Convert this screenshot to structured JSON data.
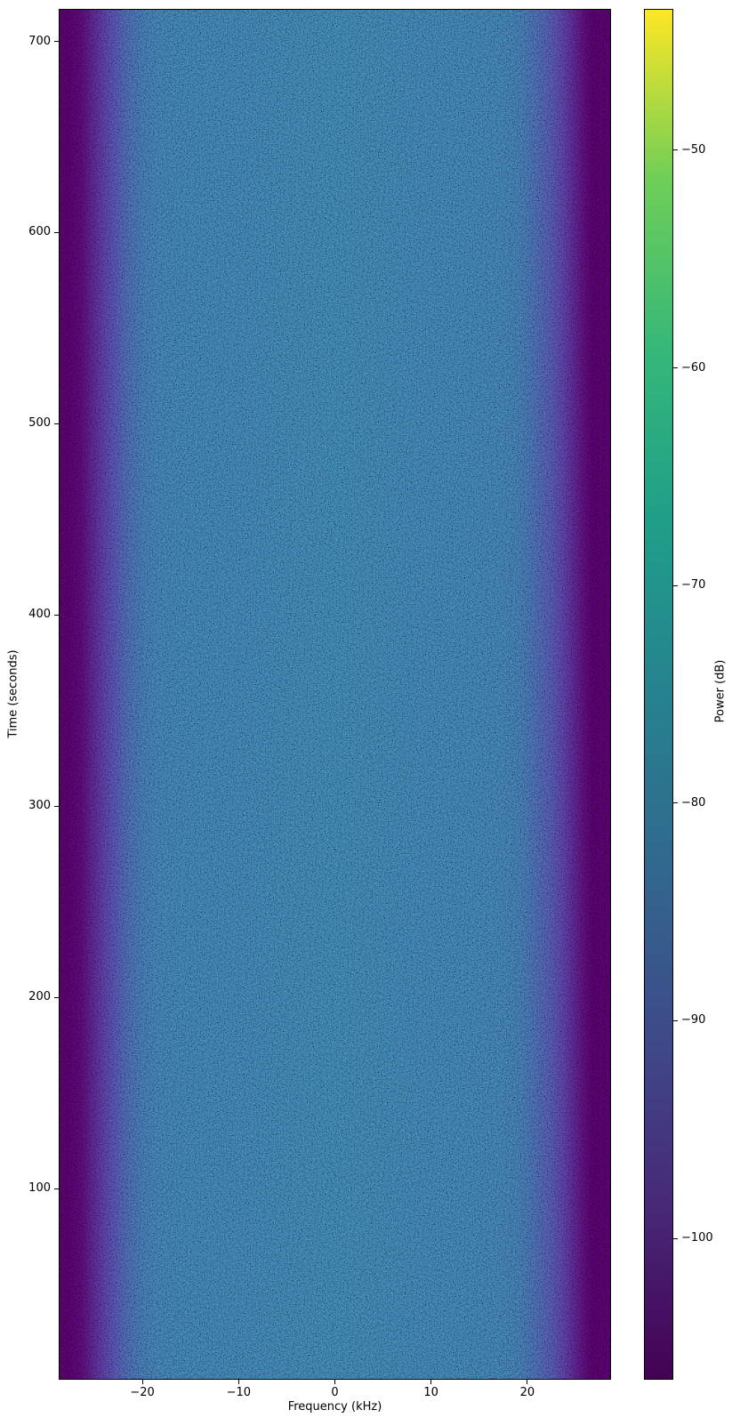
{
  "chart_data": {
    "type": "heatmap",
    "subtype": "spectrogram-waterfall",
    "xlabel": "Frequency (kHz)",
    "ylabel": "Time (seconds)",
    "colorbar_label": "Power (dB)",
    "colormap": "viridis",
    "grid": false,
    "x_range_khz": [
      -28.7,
      28.7
    ],
    "y_range_s": [
      0,
      717
    ],
    "color_range_db": [
      -106.5,
      -43.5
    ],
    "x_ticks": {
      "values": [
        -20,
        -10,
        0,
        10,
        20
      ],
      "labels": [
        "−20",
        "−10",
        "0",
        "10",
        "20"
      ]
    },
    "y_ticks": {
      "values": [
        100,
        200,
        300,
        400,
        500,
        600,
        700
      ],
      "labels": [
        "100",
        "200",
        "300",
        "400",
        "500",
        "600",
        "700"
      ]
    },
    "colorbar_ticks": {
      "values": [
        -50,
        -60,
        -70,
        -80,
        -90,
        -100
      ],
      "labels": [
        "−50",
        "−60",
        "−70",
        "−80",
        "−90",
        "−100"
      ]
    },
    "content_summary": "Flat broadband noise floor of about −85 dB occupying roughly ±24 kHz of the passband, uniform over the full 0–717 s capture, rolling off through purple (≈−95 dB) to a dark ≈−105 dB floor at the band edges beyond ±27 kHz; fine speckle noise texture throughout; no signals or title.",
    "band_profile_db_vs_khz": [
      [
        -28.7,
        -105
      ],
      [
        -28.0,
        -105
      ],
      [
        -26.5,
        -101
      ],
      [
        -25.0,
        -96
      ],
      [
        -23.5,
        -90
      ],
      [
        -22.0,
        -87
      ],
      [
        -20.0,
        -86
      ],
      [
        -10.0,
        -85.5
      ],
      [
        0.0,
        -85
      ],
      [
        10.0,
        -85.5
      ],
      [
        20.0,
        -86
      ],
      [
        22.0,
        -87
      ],
      [
        23.5,
        -90
      ],
      [
        25.0,
        -96
      ],
      [
        26.5,
        -101
      ],
      [
        28.0,
        -105
      ],
      [
        28.7,
        -105
      ]
    ],
    "noise_floor_db": -85,
    "edge_floor_db": -105,
    "viridis_stops": [
      "#440154",
      "#482878",
      "#3e4a89",
      "#31688e",
      "#26828e",
      "#1f9e89",
      "#35b779",
      "#6ece58",
      "#fde725"
    ],
    "colorbar_gradient": [
      {
        "p": 0,
        "c": "#fde725"
      },
      {
        "p": 12.5,
        "c": "#6ece58"
      },
      {
        "p": 25,
        "c": "#35b779"
      },
      {
        "p": 37.5,
        "c": "#1f9e89"
      },
      {
        "p": 50,
        "c": "#26828e"
      },
      {
        "p": 62.5,
        "c": "#31688e"
      },
      {
        "p": 75,
        "c": "#3e4a89"
      },
      {
        "p": 87.5,
        "c": "#482878"
      },
      {
        "p": 100,
        "c": "#440154"
      }
    ],
    "heatmap_gradient": [
      {
        "p": 0,
        "c": "#440154"
      },
      {
        "p": 1.5,
        "c": "#440154"
      },
      {
        "p": 4,
        "c": "#46095c"
      },
      {
        "p": 6,
        "c": "#471d6e"
      },
      {
        "p": 8.2,
        "c": "#46327e"
      },
      {
        "p": 10.5,
        "c": "#40458a"
      },
      {
        "p": 12.5,
        "c": "#3a538c"
      },
      {
        "p": 15.5,
        "c": "#355f8e"
      },
      {
        "p": 18,
        "c": "#33648e"
      },
      {
        "p": 50,
        "c": "#31688e"
      },
      {
        "p": 80,
        "c": "#33648e"
      },
      {
        "p": 83.5,
        "c": "#34608d"
      },
      {
        "p": 86.5,
        "c": "#3a538c"
      },
      {
        "p": 89.2,
        "c": "#40458a"
      },
      {
        "p": 91.5,
        "c": "#46327e"
      },
      {
        "p": 93.5,
        "c": "#471d6e"
      },
      {
        "p": 95.5,
        "c": "#46095c"
      },
      {
        "p": 96.8,
        "c": "#440154"
      },
      {
        "p": 100,
        "c": "#440154"
      }
    ]
  }
}
